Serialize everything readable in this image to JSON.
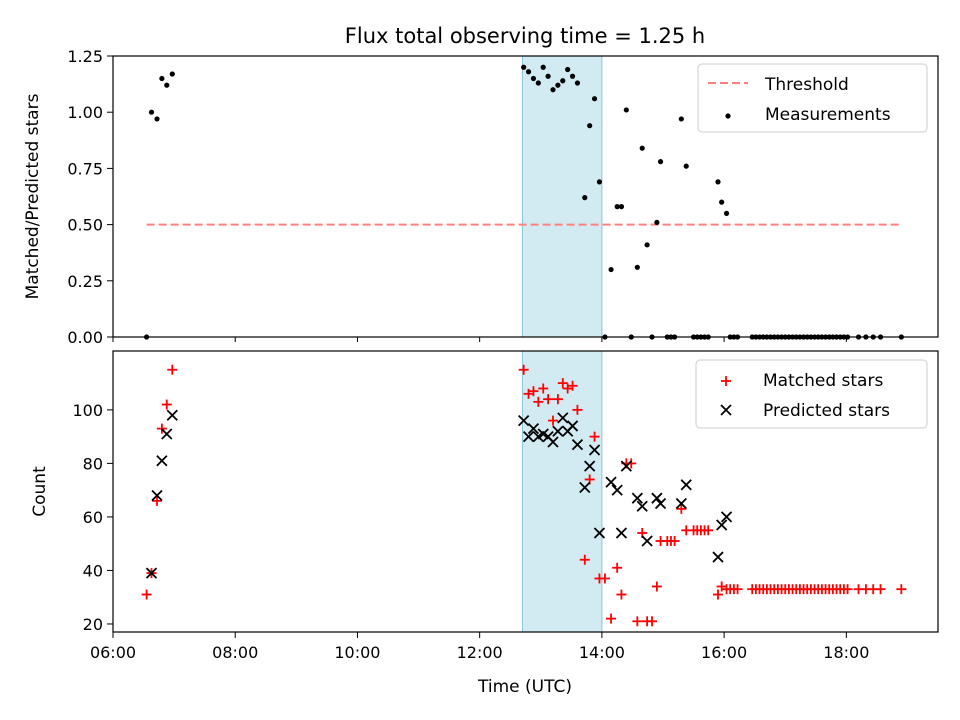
{
  "title": "Flux total observing time = 1.25 h",
  "colors": {
    "threshold": "#ff7f7f",
    "measurements": "#000000",
    "matched": "#ff0000",
    "predicted": "#000000",
    "shade": "#add8e6"
  },
  "chart_data": [
    {
      "type": "scatter",
      "ylabel": "Matched/Predicted stars",
      "ylim": [
        0,
        1.25
      ],
      "xlim": [
        6.0,
        19.5
      ],
      "yticks": [
        "0.00",
        "0.25",
        "0.50",
        "0.75",
        "1.00",
        "1.25"
      ],
      "legend_position": "top-right",
      "shaded_interval": [
        12.7,
        14.0
      ],
      "threshold": {
        "name": "Threshold",
        "value": 0.5,
        "x_range": [
          6.55,
          18.9
        ]
      },
      "series": [
        {
          "name": "Measurements",
          "points": [
            [
              6.55,
              0.0
            ],
            [
              6.63,
              1.0
            ],
            [
              6.72,
              0.97
            ],
            [
              6.8,
              1.15
            ],
            [
              6.88,
              1.12
            ],
            [
              6.97,
              1.17
            ],
            [
              12.72,
              1.2
            ],
            [
              12.8,
              1.18
            ],
            [
              12.88,
              1.15
            ],
            [
              12.96,
              1.13
            ],
            [
              13.04,
              1.2
            ],
            [
              13.12,
              1.16
            ],
            [
              13.2,
              1.1
            ],
            [
              13.28,
              1.12
            ],
            [
              13.36,
              1.14
            ],
            [
              13.44,
              1.19
            ],
            [
              13.52,
              1.16
            ],
            [
              13.6,
              1.13
            ],
            [
              13.72,
              0.62
            ],
            [
              13.8,
              0.94
            ],
            [
              13.88,
              1.06
            ],
            [
              13.96,
              0.69
            ],
            [
              14.05,
              0.0
            ],
            [
              14.15,
              0.3
            ],
            [
              14.25,
              0.58
            ],
            [
              14.32,
              0.58
            ],
            [
              14.4,
              1.01
            ],
            [
              14.48,
              0.0
            ],
            [
              14.58,
              0.31
            ],
            [
              14.66,
              0.84
            ],
            [
              14.74,
              0.41
            ],
            [
              14.82,
              0.0
            ],
            [
              14.9,
              0.51
            ],
            [
              14.96,
              0.78
            ],
            [
              15.07,
              0.0
            ],
            [
              15.13,
              0.0
            ],
            [
              15.19,
              0.0
            ],
            [
              15.3,
              0.97
            ],
            [
              15.38,
              0.76
            ],
            [
              15.5,
              0.0
            ],
            [
              15.56,
              0.0
            ],
            [
              15.62,
              0.0
            ],
            [
              15.68,
              0.0
            ],
            [
              15.74,
              0.0
            ],
            [
              15.9,
              0.69
            ],
            [
              15.96,
              0.6
            ],
            [
              16.04,
              0.55
            ],
            [
              16.1,
              0.0
            ],
            [
              16.16,
              0.0
            ],
            [
              16.22,
              0.0
            ],
            [
              16.46,
              0.0
            ],
            [
              16.52,
              0.0
            ],
            [
              16.58,
              0.0
            ],
            [
              16.64,
              0.0
            ],
            [
              16.7,
              0.0
            ],
            [
              16.76,
              0.0
            ],
            [
              16.82,
              0.0
            ],
            [
              16.88,
              0.0
            ],
            [
              16.94,
              0.0
            ],
            [
              17.0,
              0.0
            ],
            [
              17.06,
              0.0
            ],
            [
              17.12,
              0.0
            ],
            [
              17.18,
              0.0
            ],
            [
              17.24,
              0.0
            ],
            [
              17.3,
              0.0
            ],
            [
              17.36,
              0.0
            ],
            [
              17.42,
              0.0
            ],
            [
              17.48,
              0.0
            ],
            [
              17.54,
              0.0
            ],
            [
              17.6,
              0.0
            ],
            [
              17.66,
              0.0
            ],
            [
              17.72,
              0.0
            ],
            [
              17.78,
              0.0
            ],
            [
              17.84,
              0.0
            ],
            [
              17.9,
              0.0
            ],
            [
              17.96,
              0.0
            ],
            [
              18.02,
              0.0
            ],
            [
              18.2,
              0.0
            ],
            [
              18.32,
              0.0
            ],
            [
              18.44,
              0.0
            ],
            [
              18.56,
              0.0
            ],
            [
              18.9,
              0.0
            ]
          ]
        }
      ]
    },
    {
      "type": "scatter",
      "xlabel": "Time (UTC)",
      "ylabel": "Count",
      "ylim": [
        17,
        122
      ],
      "xlim": [
        6.0,
        19.5
      ],
      "yticks": [
        20,
        40,
        60,
        80,
        100
      ],
      "xticks": [
        "06:00",
        "08:00",
        "10:00",
        "12:00",
        "14:00",
        "16:00",
        "18:00"
      ],
      "legend_position": "top-right",
      "shaded_interval": [
        12.7,
        14.0
      ],
      "series": [
        {
          "name": "Matched stars",
          "marker": "plus",
          "points": [
            [
              6.55,
              31
            ],
            [
              6.63,
              39
            ],
            [
              6.72,
              66
            ],
            [
              6.8,
              93
            ],
            [
              6.88,
              102
            ],
            [
              6.97,
              115
            ],
            [
              12.72,
              115
            ],
            [
              12.8,
              106
            ],
            [
              12.88,
              107
            ],
            [
              12.96,
              103
            ],
            [
              13.04,
              108
            ],
            [
              13.12,
              104
            ],
            [
              13.2,
              96
            ],
            [
              13.28,
              104
            ],
            [
              13.36,
              110
            ],
            [
              13.44,
              108
            ],
            [
              13.52,
              109
            ],
            [
              13.6,
              100
            ],
            [
              13.72,
              44
            ],
            [
              13.8,
              74
            ],
            [
              13.88,
              90
            ],
            [
              13.96,
              37
            ],
            [
              14.05,
              37
            ],
            [
              14.15,
              22
            ],
            [
              14.25,
              41
            ],
            [
              14.32,
              31
            ],
            [
              14.4,
              80
            ],
            [
              14.48,
              80
            ],
            [
              14.58,
              21
            ],
            [
              14.66,
              54
            ],
            [
              14.74,
              21
            ],
            [
              14.82,
              21
            ],
            [
              14.9,
              34
            ],
            [
              14.96,
              51
            ],
            [
              15.07,
              51
            ],
            [
              15.13,
              51
            ],
            [
              15.19,
              51
            ],
            [
              15.3,
              63
            ],
            [
              15.38,
              55
            ],
            [
              15.5,
              55
            ],
            [
              15.56,
              55
            ],
            [
              15.62,
              55
            ],
            [
              15.68,
              55
            ],
            [
              15.74,
              55
            ],
            [
              15.9,
              31
            ],
            [
              15.96,
              34
            ],
            [
              16.04,
              33
            ],
            [
              16.1,
              33
            ],
            [
              16.16,
              33
            ],
            [
              16.22,
              33
            ],
            [
              16.46,
              33
            ],
            [
              16.52,
              33
            ],
            [
              16.58,
              33
            ],
            [
              16.64,
              33
            ],
            [
              16.7,
              33
            ],
            [
              16.76,
              33
            ],
            [
              16.82,
              33
            ],
            [
              16.88,
              33
            ],
            [
              16.94,
              33
            ],
            [
              17.0,
              33
            ],
            [
              17.06,
              33
            ],
            [
              17.12,
              33
            ],
            [
              17.18,
              33
            ],
            [
              17.24,
              33
            ],
            [
              17.3,
              33
            ],
            [
              17.36,
              33
            ],
            [
              17.42,
              33
            ],
            [
              17.48,
              33
            ],
            [
              17.54,
              33
            ],
            [
              17.6,
              33
            ],
            [
              17.66,
              33
            ],
            [
              17.72,
              33
            ],
            [
              17.78,
              33
            ],
            [
              17.84,
              33
            ],
            [
              17.9,
              33
            ],
            [
              17.96,
              33
            ],
            [
              18.02,
              33
            ],
            [
              18.2,
              33
            ],
            [
              18.32,
              33
            ],
            [
              18.44,
              33
            ],
            [
              18.56,
              33
            ],
            [
              18.9,
              33
            ]
          ]
        },
        {
          "name": "Predicted stars",
          "marker": "x",
          "points": [
            [
              6.63,
              39
            ],
            [
              6.72,
              68
            ],
            [
              6.8,
              81
            ],
            [
              6.88,
              91
            ],
            [
              6.97,
              98
            ],
            [
              12.72,
              96
            ],
            [
              12.8,
              90
            ],
            [
              12.88,
              93
            ],
            [
              12.96,
              90
            ],
            [
              13.04,
              91
            ],
            [
              13.12,
              90
            ],
            [
              13.2,
              88
            ],
            [
              13.28,
              92
            ],
            [
              13.36,
              97
            ],
            [
              13.44,
              92
            ],
            [
              13.52,
              94
            ],
            [
              13.6,
              87
            ],
            [
              13.72,
              71
            ],
            [
              13.8,
              79
            ],
            [
              13.88,
              85
            ],
            [
              13.96,
              54
            ],
            [
              14.15,
              73
            ],
            [
              14.25,
              70
            ],
            [
              14.32,
              54
            ],
            [
              14.4,
              79
            ],
            [
              14.58,
              67
            ],
            [
              14.66,
              64
            ],
            [
              14.74,
              51
            ],
            [
              14.9,
              67
            ],
            [
              14.96,
              65
            ],
            [
              15.3,
              65
            ],
            [
              15.38,
              72
            ],
            [
              15.9,
              45
            ],
            [
              15.96,
              57
            ],
            [
              16.04,
              60
            ]
          ]
        }
      ]
    }
  ]
}
